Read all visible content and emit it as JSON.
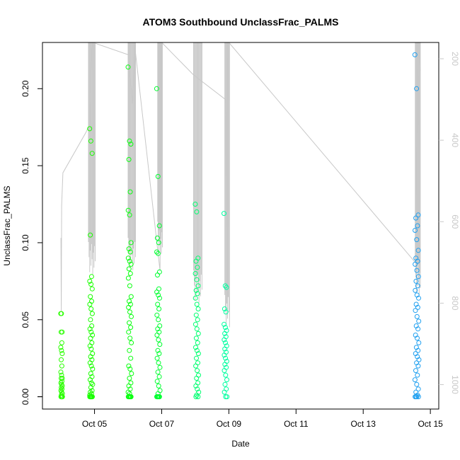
{
  "chart_data": {
    "type": "scatter",
    "title": "ATOM3 Southbound UnclassFrac_PALMS",
    "xlabel": "Date",
    "ylabel": "UnclassFrac_PALMS",
    "x_ticks": [
      "Oct 05",
      "Oct 07",
      "Oct 09",
      "Oct 11",
      "Oct 13",
      "Oct 15"
    ],
    "y_ticks": [
      "0.00",
      "0.05",
      "0.10",
      "0.15",
      "0.20"
    ],
    "y2_ticks": [
      "200",
      "400",
      "600",
      "800",
      "1000"
    ],
    "xlim_days": [
      3.45,
      15.25
    ],
    "ylim": [
      -0.008,
      0.23
    ],
    "y2lim": [
      1060,
      160
    ],
    "grid": false,
    "marker": "open-circle",
    "color_ramp_note": "points colored green to blue by time",
    "point_groups": [
      {
        "day": 4.02,
        "spread": 0.05,
        "color": "#2aff00",
        "values": [
          0.054,
          0.054,
          0.042,
          0.042,
          0.035,
          0.032,
          0.03,
          0.028,
          0.024,
          0.02,
          0.016,
          0.014,
          0.012,
          0.012,
          0.01,
          0.009,
          0.008,
          0.007,
          0.006,
          0.005,
          0.004,
          0.003,
          0.002,
          0.001,
          0.0,
          0.0,
          0.0,
          0.0,
          0.0,
          0.0
        ]
      },
      {
        "day": 4.9,
        "spread": 0.09,
        "color": "#1aff00",
        "values": [
          0.174,
          0.166,
          0.158,
          0.105,
          0.078,
          0.075,
          0.073,
          0.07,
          0.065,
          0.062,
          0.06,
          0.057,
          0.054,
          0.05,
          0.046,
          0.044,
          0.042,
          0.04,
          0.038,
          0.035,
          0.033,
          0.031,
          0.028,
          0.026,
          0.024,
          0.022,
          0.02,
          0.018,
          0.015,
          0.013,
          0.011,
          0.009,
          0.008,
          0.006,
          0.004,
          0.003,
          0.002,
          0.001,
          0.0,
          0.0,
          0.0,
          0.0,
          0.0,
          0.0,
          0.0,
          0.0,
          0.0,
          0.0
        ]
      },
      {
        "day": 6.05,
        "spread": 0.1,
        "color": "#0aff10",
        "values": [
          0.214,
          0.166,
          0.164,
          0.154,
          0.133,
          0.121,
          0.118,
          0.1,
          0.096,
          0.094,
          0.09,
          0.088,
          0.086,
          0.083,
          0.08,
          0.077,
          0.072,
          0.065,
          0.062,
          0.06,
          0.058,
          0.055,
          0.052,
          0.048,
          0.045,
          0.042,
          0.038,
          0.035,
          0.03,
          0.025,
          0.02,
          0.018,
          0.015,
          0.012,
          0.009,
          0.007,
          0.005,
          0.003,
          0.002,
          0.0,
          0.0,
          0.0,
          0.0,
          0.0,
          0.0,
          0.0
        ]
      },
      {
        "day": 6.9,
        "spread": 0.1,
        "color": "#00ff30",
        "values": [
          0.2,
          0.143,
          0.111,
          0.103,
          0.1,
          0.094,
          0.093,
          0.081,
          0.079,
          0.07,
          0.068,
          0.066,
          0.064,
          0.06,
          0.057,
          0.053,
          0.05,
          0.046,
          0.044,
          0.042,
          0.04,
          0.037,
          0.034,
          0.03,
          0.028,
          0.025,
          0.022,
          0.019,
          0.016,
          0.013,
          0.01,
          0.007,
          0.004,
          0.002,
          0.0,
          0.0,
          0.0,
          0.0,
          0.0,
          0.0,
          0.0
        ]
      },
      {
        "day": 8.05,
        "spread": 0.1,
        "color": "#00ff70",
        "values": [
          0.125,
          0.12,
          0.09,
          0.088,
          0.084,
          0.08,
          0.076,
          0.072,
          0.069,
          0.067,
          0.064,
          0.06,
          0.057,
          0.053,
          0.05,
          0.047,
          0.044,
          0.041,
          0.038,
          0.035,
          0.032,
          0.03,
          0.028,
          0.025,
          0.022,
          0.02,
          0.017,
          0.014,
          0.012,
          0.009,
          0.007,
          0.005,
          0.003,
          0.001,
          0.0,
          0.0
        ]
      },
      {
        "day": 8.9,
        "spread": 0.09,
        "color": "#00ffa0",
        "values": [
          0.119,
          0.072,
          0.071,
          0.057,
          0.055,
          0.047,
          0.045,
          0.043,
          0.041,
          0.039,
          0.037,
          0.035,
          0.033,
          0.031,
          0.029,
          0.027,
          0.025,
          0.023,
          0.021,
          0.019,
          0.017,
          0.014,
          0.011,
          0.008,
          0.005,
          0.003,
          0.0,
          0.0
        ]
      },
      {
        "day": 14.6,
        "spread": 0.12,
        "color": "#20a0f0",
        "values": [
          0.222,
          0.2,
          0.118,
          0.116,
          0.111,
          0.108,
          0.102,
          0.095,
          0.09,
          0.088,
          0.086,
          0.082,
          0.078,
          0.075,
          0.072,
          0.069,
          0.066,
          0.064,
          0.06,
          0.058,
          0.056,
          0.052,
          0.049,
          0.046,
          0.044,
          0.04,
          0.038,
          0.035,
          0.032,
          0.03,
          0.028,
          0.026,
          0.024,
          0.022,
          0.02,
          0.017,
          0.014,
          0.011,
          0.008,
          0.005,
          0.003,
          0.001,
          0.0,
          0.0,
          0.0,
          0.0
        ]
      }
    ],
    "altitude_overlay": {
      "color": "#c8c8c8",
      "series_name": "",
      "path": [
        [
          4.0,
          640
        ],
        [
          4.01,
          820
        ],
        [
          4.02,
          560
        ],
        [
          4.06,
          480
        ],
        [
          4.75,
          380
        ],
        [
          4.86,
          360
        ],
        [
          4.92,
          180
        ],
        [
          4.95,
          160
        ],
        [
          6.0,
          190
        ],
        [
          6.12,
          310
        ],
        [
          6.2,
          170
        ],
        [
          6.95,
          720
        ],
        [
          7.0,
          160
        ],
        [
          7.95,
          240
        ],
        [
          8.9,
          300
        ],
        [
          8.97,
          770
        ],
        [
          9.0,
          160
        ],
        [
          14.55,
          700
        ],
        [
          14.65,
          160
        ],
        [
          14.7,
          230
        ]
      ],
      "spikes": [
        {
          "day_start": 4.82,
          "day_end": 5.02,
          "count": 12,
          "bottom": 650
        },
        {
          "day_start": 6.0,
          "day_end": 6.22,
          "count": 12,
          "bottom": 640
        },
        {
          "day_start": 6.88,
          "day_end": 7.02,
          "count": 10,
          "bottom": 600
        },
        {
          "day_start": 7.95,
          "day_end": 8.2,
          "count": 12,
          "bottom": 720
        },
        {
          "day_start": 8.88,
          "day_end": 9.02,
          "count": 8,
          "bottom": 780
        },
        {
          "day_start": 14.55,
          "day_end": 14.7,
          "count": 10,
          "bottom": 700
        }
      ]
    }
  }
}
